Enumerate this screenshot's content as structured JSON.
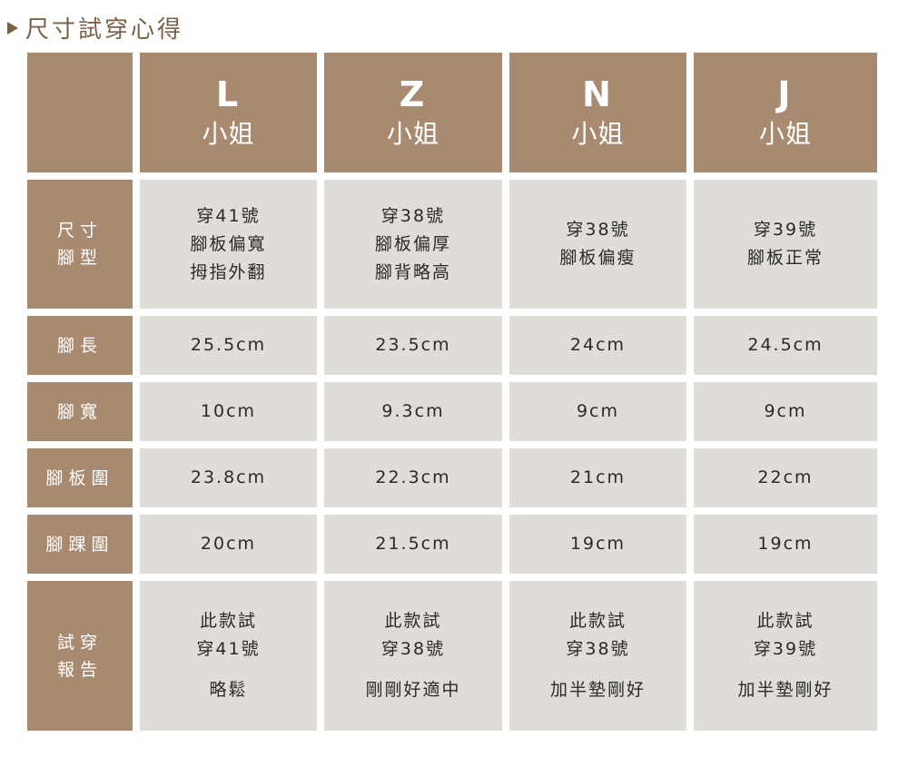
{
  "title": "尺寸試穿心得",
  "colors": {
    "header": "#a88a70",
    "cell": "#e0ddd8",
    "title": "#7a6144"
  },
  "people": [
    {
      "letter": "L",
      "suffix": "小姐"
    },
    {
      "letter": "Z",
      "suffix": "小姐"
    },
    {
      "letter": "N",
      "suffix": "小姐"
    },
    {
      "letter": "J",
      "suffix": "小姐"
    }
  ],
  "rows": [
    {
      "label": [
        "尺寸",
        "腳型"
      ],
      "cells": [
        [
          "穿41號",
          "腳板偏寬",
          "拇指外翻"
        ],
        [
          "穿38號",
          "腳板偏厚",
          "腳背略高"
        ],
        [
          "穿38號",
          "腳板偏瘦"
        ],
        [
          "穿39號",
          "腳板正常"
        ]
      ]
    },
    {
      "label": [
        "腳長"
      ],
      "cells": [
        [
          "25.5cm"
        ],
        [
          "23.5cm"
        ],
        [
          "24cm"
        ],
        [
          "24.5cm"
        ]
      ]
    },
    {
      "label": [
        "腳寬"
      ],
      "cells": [
        [
          "10cm"
        ],
        [
          "9.3cm"
        ],
        [
          "9cm"
        ],
        [
          "9cm"
        ]
      ]
    },
    {
      "label": [
        "腳板圍"
      ],
      "cells": [
        [
          "23.8cm"
        ],
        [
          "22.3cm"
        ],
        [
          "21cm"
        ],
        [
          "22cm"
        ]
      ]
    },
    {
      "label": [
        "腳踝圍"
      ],
      "cells": [
        [
          "20cm"
        ],
        [
          "21.5cm"
        ],
        [
          "19cm"
        ],
        [
          "19cm"
        ]
      ]
    },
    {
      "label": [
        "試穿",
        "報告"
      ],
      "cells": [
        [
          "此款試",
          "穿41號",
          "略鬆"
        ],
        [
          "此款試",
          "穿38號",
          "剛剛好適中"
        ],
        [
          "此款試",
          "穿38號",
          "加半墊剛好"
        ],
        [
          "此款試",
          "穿39號",
          "加半墊剛好"
        ]
      ]
    }
  ]
}
